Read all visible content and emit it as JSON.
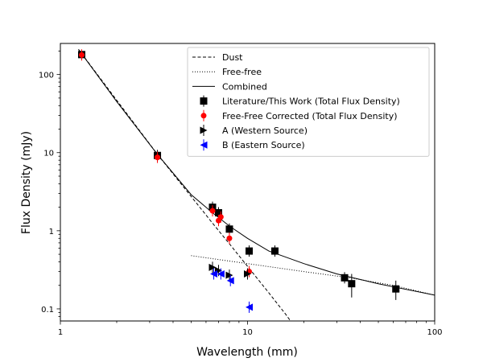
{
  "chart_data": {
    "type": "scatter",
    "title": "",
    "xlabel": "Wavelength (mm)",
    "ylabel": "Flux Density (mJy)",
    "xscale": "log",
    "yscale": "log",
    "xlim": [
      1,
      100
    ],
    "ylim": [
      0.07,
      250
    ],
    "xticks": [
      {
        "value": 1,
        "label": "1"
      },
      {
        "value": 10,
        "label": "10"
      },
      {
        "value": 100,
        "label": "100"
      }
    ],
    "yticks": [
      {
        "value": 0.1,
        "label": "0.1"
      },
      {
        "value": 1,
        "label": "1"
      },
      {
        "value": 10,
        "label": "10"
      },
      {
        "value": 100,
        "label": "100"
      }
    ],
    "grid": false,
    "legend_position": "top-right",
    "lines": [
      {
        "name": "Dust",
        "style": "dashed",
        "color": "#000000",
        "x": [
          1.25,
          3.3,
          6.5,
          8,
          10,
          13,
          16,
          19
        ],
        "y": [
          210,
          9.5,
          1.25,
          0.68,
          0.35,
          0.16,
          0.085,
          0.048
        ]
      },
      {
        "name": "Free-free",
        "style": "dotted",
        "color": "#000000",
        "x": [
          5,
          10,
          20,
          35,
          60,
          100
        ],
        "y": [
          0.48,
          0.38,
          0.3,
          0.25,
          0.2,
          0.15
        ]
      },
      {
        "name": "Combined",
        "style": "solid",
        "color": "#000000",
        "x": [
          1.25,
          2,
          3.3,
          5,
          6.5,
          8,
          10,
          13,
          20,
          30,
          50,
          100
        ],
        "y": [
          210,
          45,
          9.5,
          2.9,
          1.7,
          1.15,
          0.8,
          0.55,
          0.38,
          0.28,
          0.21,
          0.15
        ]
      }
    ],
    "series": [
      {
        "name": "Literature/This Work (Total Flux Density)",
        "marker": "square",
        "color": "#000000",
        "points": [
          {
            "x": 1.3,
            "y": 180,
            "yerr": 25
          },
          {
            "x": 3.3,
            "y": 9.2,
            "yerr": 0
          },
          {
            "x": 6.5,
            "y": 2.0,
            "yerr": 0
          },
          {
            "x": 7.0,
            "y": 1.7,
            "yerr": 0
          },
          {
            "x": 8.0,
            "y": 1.05,
            "yerr": 0
          },
          {
            "x": 10.2,
            "y": 0.55,
            "yerr": 0
          },
          {
            "x": 14.0,
            "y": 0.55,
            "yerr": 0
          },
          {
            "x": 33.0,
            "y": 0.25,
            "yerr": 0
          },
          {
            "x": 36.0,
            "y": 0.21,
            "yerr": 0.07
          },
          {
            "x": 62.0,
            "y": 0.18,
            "yerr": 0.05
          }
        ]
      },
      {
        "name": "Free-Free Corrected (Total Flux Density)",
        "marker": "circle",
        "color": "#ff0000",
        "points": [
          {
            "x": 1.3,
            "y": 178,
            "yerr": 0
          },
          {
            "x": 3.3,
            "y": 8.7,
            "yerr": 0
          },
          {
            "x": 6.5,
            "y": 1.8,
            "yerr": 0
          },
          {
            "x": 7.0,
            "y": 1.35,
            "yerr": 0
          },
          {
            "x": 7.2,
            "y": 1.5,
            "yerr": 0
          },
          {
            "x": 8.0,
            "y": 0.8,
            "yerr": 0
          },
          {
            "x": 10.2,
            "y": 0.3,
            "yerr": 0
          }
        ]
      },
      {
        "name": "A (Western Source)",
        "marker": "triangle-right",
        "color": "#000000",
        "points": [
          {
            "x": 6.5,
            "y": 0.34
          },
          {
            "x": 7.0,
            "y": 0.31
          },
          {
            "x": 8.0,
            "y": 0.27
          },
          {
            "x": 10.0,
            "y": 0.28
          }
        ]
      },
      {
        "name": "B (Eastern Source)",
        "marker": "triangle-left",
        "color": "#0000ff",
        "points": [
          {
            "x": 6.6,
            "y": 0.28
          },
          {
            "x": 7.2,
            "y": 0.28
          },
          {
            "x": 8.1,
            "y": 0.23
          },
          {
            "x": 10.2,
            "y": 0.105
          }
        ]
      }
    ]
  }
}
